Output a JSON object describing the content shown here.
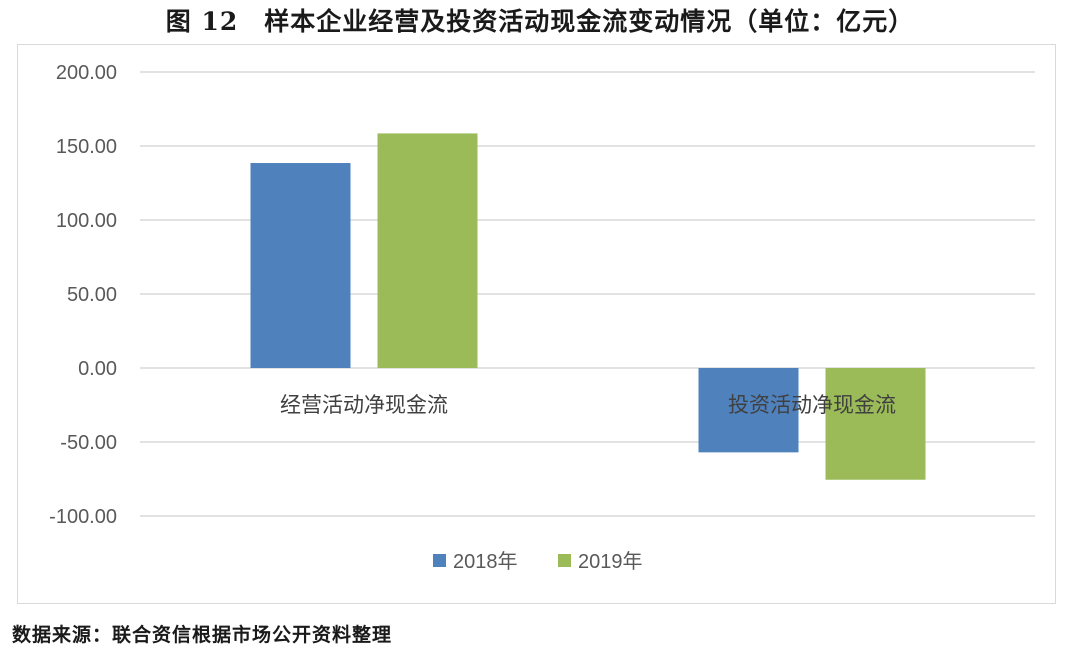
{
  "title": "图 12　样本企业经营及投资活动现金流变动情况（单位：亿元）",
  "source": "数据来源：联合资信根据市场公开资料整理",
  "chart_data": {
    "type": "bar",
    "categories": [
      "经营活动净现金流",
      "投资活动净现金流"
    ],
    "series": [
      {
        "name": "2018年",
        "color": "#4f81bd",
        "values": [
          138.5,
          -57.0
        ]
      },
      {
        "name": "2019年",
        "color": "#9bbb59",
        "values": [
          158.5,
          -75.5
        ]
      }
    ],
    "yticks": [
      "200.00",
      "150.00",
      "100.00",
      "50.00",
      "0.00",
      "-50.00",
      "-100.00"
    ],
    "ylim": [
      -100,
      200
    ],
    "grid": true,
    "legend_position": "bottom"
  }
}
